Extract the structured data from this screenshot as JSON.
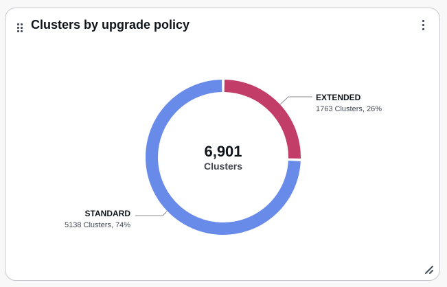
{
  "widget": {
    "title": "Clusters by upgrade policy",
    "drag_handle_icon": "drag-handle-icon",
    "menu_icon": "vertical-ellipsis-icon",
    "resize_icon": "resize-handle-icon"
  },
  "donut": {
    "total_value": "6,901",
    "total_label": "Clusters"
  },
  "segments": [
    {
      "name": "EXTENDED",
      "detail": "1763 Clusters, 26%",
      "color": "#c33d69"
    },
    {
      "name": "STANDARD",
      "detail": "5138 Clusters, 74%",
      "color": "#688ae8"
    }
  ],
  "chart_data": {
    "type": "pie",
    "title": "Clusters by upgrade policy",
    "variant": "donut",
    "inner_label": {
      "value": "6,901",
      "unit": "Clusters"
    },
    "categories": [
      "EXTENDED",
      "STANDARD"
    ],
    "values": [
      1763,
      5138
    ],
    "percentages": [
      26,
      74
    ],
    "colors": [
      "#c33d69",
      "#688ae8"
    ],
    "total": 6901,
    "legend_position": "inline labels"
  }
}
